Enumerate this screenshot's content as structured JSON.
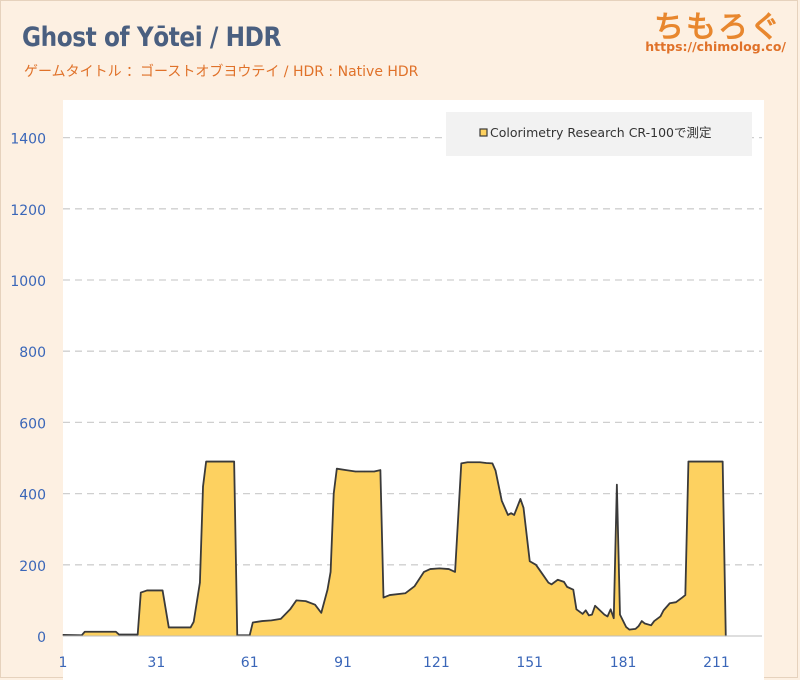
{
  "title": "Ghost of Yōtei / HDR",
  "subtitle": "ゲームタイトル ：ゴーストオブヨウテイ / HDR : Native HDR",
  "brand": {
    "logo_text": "ちもろぐ",
    "url": "https://chimolog.co/"
  },
  "colors": {
    "background": "#fdf0e2",
    "plot_bg": "#ffffff",
    "area_fill": "#fdd160",
    "area_stroke": "#3a3a3a",
    "axis_label": "#3a66b8",
    "title": "#4a5f80",
    "accent": "#e0722a"
  },
  "chart_data": {
    "type": "area",
    "title": "Ghost of Yōtei / HDR",
    "xlabel": "",
    "ylabel": "",
    "ylim": [
      0,
      1500
    ],
    "xlim": [
      1,
      225
    ],
    "yticks": [
      0,
      200,
      400,
      600,
      800,
      1000,
      1200,
      1400
    ],
    "xticks": [
      1,
      31,
      61,
      91,
      121,
      151,
      181,
      211
    ],
    "grid": true,
    "legend_position": "top-right",
    "series": [
      {
        "name": "Colorimetry Research CR-100で測定",
        "points": [
          [
            1,
            3
          ],
          [
            7,
            2
          ],
          [
            8,
            12
          ],
          [
            18,
            12
          ],
          [
            19,
            4
          ],
          [
            25,
            4
          ],
          [
            26,
            122
          ],
          [
            28,
            128
          ],
          [
            33,
            128
          ],
          [
            35,
            24
          ],
          [
            42,
            24
          ],
          [
            43,
            40
          ],
          [
            45,
            150
          ],
          [
            46,
            420
          ],
          [
            47,
            490
          ],
          [
            56,
            490
          ],
          [
            57,
            2
          ],
          [
            61,
            2
          ],
          [
            62,
            38
          ],
          [
            65,
            42
          ],
          [
            68,
            44
          ],
          [
            71,
            48
          ],
          [
            74,
            75
          ],
          [
            76,
            100
          ],
          [
            79,
            98
          ],
          [
            82,
            88
          ],
          [
            84,
            65
          ],
          [
            86,
            130
          ],
          [
            87,
            180
          ],
          [
            88,
            400
          ],
          [
            89,
            470
          ],
          [
            92,
            466
          ],
          [
            95,
            462
          ],
          [
            98,
            462
          ],
          [
            101,
            462
          ],
          [
            103,
            466
          ],
          [
            104,
            108
          ],
          [
            106,
            115
          ],
          [
            111,
            120
          ],
          [
            114,
            140
          ],
          [
            117,
            180
          ],
          [
            119,
            188
          ],
          [
            122,
            190
          ],
          [
            125,
            188
          ],
          [
            127,
            180
          ],
          [
            129,
            485
          ],
          [
            131,
            488
          ],
          [
            135,
            488
          ],
          [
            137,
            486
          ],
          [
            139,
            485
          ],
          [
            140,
            465
          ],
          [
            142,
            380
          ],
          [
            144,
            340
          ],
          [
            145,
            345
          ],
          [
            146,
            340
          ],
          [
            148,
            385
          ],
          [
            149,
            360
          ],
          [
            151,
            210
          ],
          [
            153,
            200
          ],
          [
            155,
            175
          ],
          [
            157,
            150
          ],
          [
            158,
            145
          ],
          [
            160,
            158
          ],
          [
            162,
            152
          ],
          [
            163,
            138
          ],
          [
            165,
            130
          ],
          [
            166,
            75
          ],
          [
            168,
            62
          ],
          [
            169,
            72
          ],
          [
            170,
            58
          ],
          [
            171,
            60
          ],
          [
            172,
            85
          ],
          [
            175,
            60
          ],
          [
            176,
            55
          ],
          [
            177,
            75
          ],
          [
            178,
            50
          ],
          [
            179,
            425
          ],
          [
            180,
            60
          ],
          [
            182,
            25
          ],
          [
            183,
            18
          ],
          [
            185,
            20
          ],
          [
            186,
            28
          ],
          [
            187,
            42
          ],
          [
            188,
            35
          ],
          [
            190,
            30
          ],
          [
            191,
            42
          ],
          [
            193,
            55
          ],
          [
            194,
            72
          ],
          [
            196,
            92
          ],
          [
            198,
            95
          ],
          [
            200,
            108
          ],
          [
            201,
            115
          ],
          [
            202,
            490
          ],
          [
            213,
            490
          ],
          [
            214,
            0
          ]
        ]
      }
    ]
  }
}
